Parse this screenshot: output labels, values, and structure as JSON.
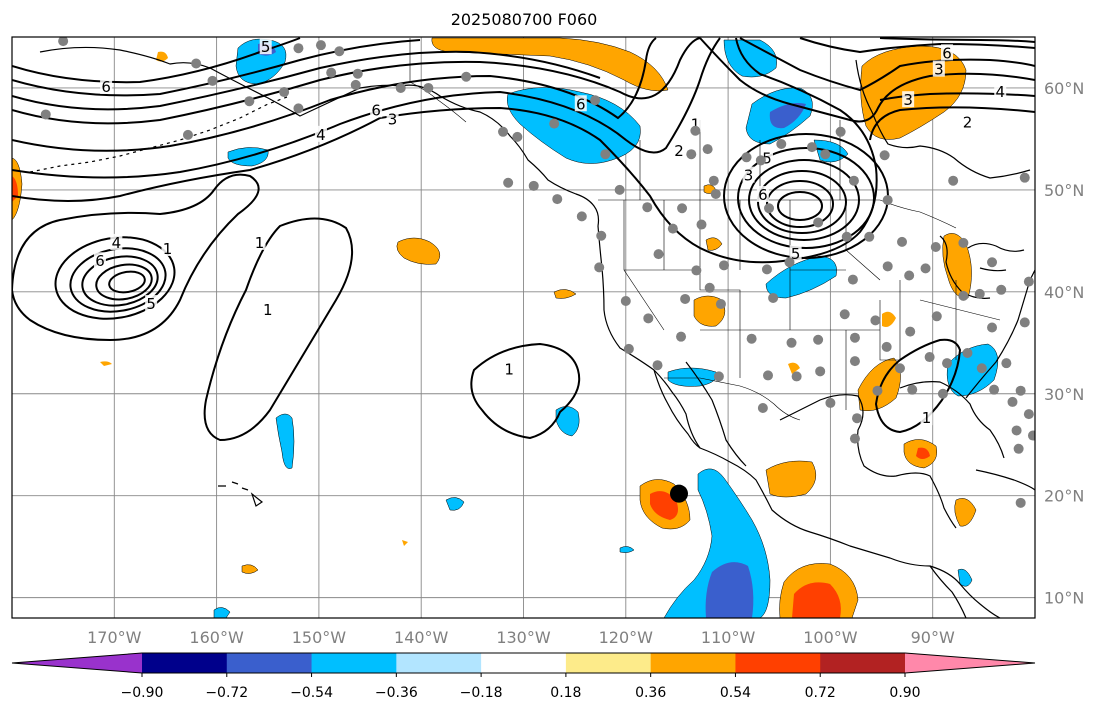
{
  "title": "2025080700 F060",
  "map": {
    "lon_range": [
      -180,
      -80
    ],
    "lat_range": [
      8,
      65
    ],
    "lon_ticks": [
      {
        "value": -170,
        "label": "170°W"
      },
      {
        "value": -160,
        "label": "160°W"
      },
      {
        "value": -150,
        "label": "150°W"
      },
      {
        "value": -140,
        "label": "140°W"
      },
      {
        "value": -130,
        "label": "130°W"
      },
      {
        "value": -120,
        "label": "120°W"
      },
      {
        "value": -110,
        "label": "110°W"
      },
      {
        "value": -100,
        "label": "100°W"
      },
      {
        "value": -90,
        "label": "90°W"
      }
    ],
    "lat_ticks": [
      {
        "value": 10,
        "label": "10°N"
      },
      {
        "value": 20,
        "label": "20°N"
      },
      {
        "value": 30,
        "label": "30°N"
      },
      {
        "value": 40,
        "label": "40°N"
      },
      {
        "value": 50,
        "label": "50°N"
      },
      {
        "value": 60,
        "label": "60°N"
      }
    ],
    "grid": true,
    "marker": {
      "lon": -114.8,
      "lat": 20.2,
      "color": "#000000"
    },
    "contour_labels": [
      {
        "text": "6",
        "lon": -170.8,
        "lat": 60.1
      },
      {
        "text": "4",
        "lon": -169.8,
        "lat": 44.8
      },
      {
        "text": "6",
        "lon": -171.4,
        "lat": 43.0
      },
      {
        "text": "5",
        "lon": -166.4,
        "lat": 38.8
      },
      {
        "text": "1",
        "lon": -164.8,
        "lat": 44.2
      },
      {
        "text": "1",
        "lon": -155.8,
        "lat": 44.8
      },
      {
        "text": "1",
        "lon": -155.0,
        "lat": 38.2
      },
      {
        "text": "4",
        "lon": -149.8,
        "lat": 55.4
      },
      {
        "text": "3",
        "lon": -142.8,
        "lat": 56.9
      },
      {
        "text": "6",
        "lon": -144.4,
        "lat": 57.8
      },
      {
        "text": "5",
        "lon": -155.2,
        "lat": 64.0
      },
      {
        "text": "6",
        "lon": -124.4,
        "lat": 58.4
      },
      {
        "text": "1",
        "lon": -113.2,
        "lat": 56.4
      },
      {
        "text": "2",
        "lon": -114.8,
        "lat": 53.8
      },
      {
        "text": "3",
        "lon": -108.0,
        "lat": 51.4
      },
      {
        "text": "6",
        "lon": -106.6,
        "lat": 49.5
      },
      {
        "text": "5",
        "lon": -106.2,
        "lat": 53.1
      },
      {
        "text": "5",
        "lon": -103.4,
        "lat": 43.7
      },
      {
        "text": "1",
        "lon": -131.4,
        "lat": 32.4
      },
      {
        "text": "6",
        "lon": -88.6,
        "lat": 63.4
      },
      {
        "text": "3",
        "lon": -89.4,
        "lat": 61.8
      },
      {
        "text": "3",
        "lon": -92.4,
        "lat": 58.8
      },
      {
        "text": "4",
        "lon": -83.4,
        "lat": 59.6
      },
      {
        "text": "2",
        "lon": -86.6,
        "lat": 56.6
      },
      {
        "text": "1",
        "lon": -90.6,
        "lat": 27.6
      }
    ],
    "station_points": [
      {
        "lon": -175.0,
        "lat": 64.6
      },
      {
        "lon": -152.0,
        "lat": 63.9
      },
      {
        "lon": -149.8,
        "lat": 64.2
      },
      {
        "lon": -148.0,
        "lat": 63.6
      },
      {
        "lon": -146.4,
        "lat": 60.3
      },
      {
        "lon": -146.2,
        "lat": 61.4
      },
      {
        "lon": -160.4,
        "lat": 60.7
      },
      {
        "lon": -153.4,
        "lat": 59.6
      },
      {
        "lon": -156.8,
        "lat": 58.7
      },
      {
        "lon": -162.0,
        "lat": 62.4
      },
      {
        "lon": -176.7,
        "lat": 57.4
      },
      {
        "lon": -162.8,
        "lat": 55.4
      },
      {
        "lon": -152.0,
        "lat": 58.0
      },
      {
        "lon": -148.8,
        "lat": 61.5
      },
      {
        "lon": -142.0,
        "lat": 60.0
      },
      {
        "lon": -139.3,
        "lat": 60.0
      },
      {
        "lon": -135.6,
        "lat": 61.1
      },
      {
        "lon": -132.0,
        "lat": 55.7
      },
      {
        "lon": -130.6,
        "lat": 55.2
      },
      {
        "lon": -127.0,
        "lat": 56.5
      },
      {
        "lon": -123.0,
        "lat": 58.8
      },
      {
        "lon": -122.0,
        "lat": 53.5
      },
      {
        "lon": -131.5,
        "lat": 50.7
      },
      {
        "lon": -129.0,
        "lat": 50.4
      },
      {
        "lon": -126.7,
        "lat": 49.1
      },
      {
        "lon": -124.3,
        "lat": 47.4
      },
      {
        "lon": -120.6,
        "lat": 50.0
      },
      {
        "lon": -117.9,
        "lat": 48.3
      },
      {
        "lon": -113.2,
        "lat": 55.8
      },
      {
        "lon": -113.6,
        "lat": 53.5
      },
      {
        "lon": -112.0,
        "lat": 54.0
      },
      {
        "lon": -108.2,
        "lat": 53.2
      },
      {
        "lon": -106.8,
        "lat": 52.9
      },
      {
        "lon": -104.8,
        "lat": 54.5
      },
      {
        "lon": -101.8,
        "lat": 54.2
      },
      {
        "lon": -100.5,
        "lat": 53.5
      },
      {
        "lon": -97.7,
        "lat": 50.9
      },
      {
        "lon": -99.0,
        "lat": 55.7
      },
      {
        "lon": -94.7,
        "lat": 53.4
      },
      {
        "lon": -88.0,
        "lat": 50.9
      },
      {
        "lon": -81.0,
        "lat": 51.2
      },
      {
        "lon": -111.4,
        "lat": 50.9
      },
      {
        "lon": -111.2,
        "lat": 49.6
      },
      {
        "lon": -115.4,
        "lat": 46.2
      },
      {
        "lon": -114.5,
        "lat": 48.2
      },
      {
        "lon": -112.6,
        "lat": 46.6
      },
      {
        "lon": -106.0,
        "lat": 48.2
      },
      {
        "lon": -101.2,
        "lat": 46.8
      },
      {
        "lon": -98.4,
        "lat": 45.4
      },
      {
        "lon": -96.2,
        "lat": 45.4
      },
      {
        "lon": -94.4,
        "lat": 49.0
      },
      {
        "lon": -93.0,
        "lat": 44.9
      },
      {
        "lon": -89.7,
        "lat": 44.4
      },
      {
        "lon": -87.0,
        "lat": 44.8
      },
      {
        "lon": -84.2,
        "lat": 42.9
      },
      {
        "lon": -90.7,
        "lat": 42.3
      },
      {
        "lon": -92.3,
        "lat": 41.6
      },
      {
        "lon": -94.4,
        "lat": 42.5
      },
      {
        "lon": -97.8,
        "lat": 41.2
      },
      {
        "lon": -104.0,
        "lat": 42.9
      },
      {
        "lon": -106.2,
        "lat": 42.2
      },
      {
        "lon": -110.4,
        "lat": 42.6
      },
      {
        "lon": -113.1,
        "lat": 42.1
      },
      {
        "lon": -116.8,
        "lat": 43.7
      },
      {
        "lon": -122.4,
        "lat": 45.5
      },
      {
        "lon": -122.6,
        "lat": 42.4
      },
      {
        "lon": -120.0,
        "lat": 39.1
      },
      {
        "lon": -117.8,
        "lat": 37.4
      },
      {
        "lon": -119.7,
        "lat": 34.4
      },
      {
        "lon": -116.9,
        "lat": 32.8
      },
      {
        "lon": -114.6,
        "lat": 35.6
      },
      {
        "lon": -114.2,
        "lat": 39.3
      },
      {
        "lon": -111.8,
        "lat": 40.4
      },
      {
        "lon": -110.7,
        "lat": 38.8
      },
      {
        "lon": -105.6,
        "lat": 39.4
      },
      {
        "lon": -107.7,
        "lat": 35.4
      },
      {
        "lon": -103.8,
        "lat": 35.0
      },
      {
        "lon": -101.2,
        "lat": 35.3
      },
      {
        "lon": -97.6,
        "lat": 35.5
      },
      {
        "lon": -98.6,
        "lat": 37.8
      },
      {
        "lon": -95.6,
        "lat": 37.2
      },
      {
        "lon": -97.6,
        "lat": 33.2
      },
      {
        "lon": -101.0,
        "lat": 32.2
      },
      {
        "lon": -103.3,
        "lat": 31.7
      },
      {
        "lon": -106.1,
        "lat": 31.8
      },
      {
        "lon": -110.9,
        "lat": 31.7
      },
      {
        "lon": -106.6,
        "lat": 28.6
      },
      {
        "lon": -100.0,
        "lat": 29.1
      },
      {
        "lon": -97.4,
        "lat": 27.6
      },
      {
        "lon": -97.6,
        "lat": 25.6
      },
      {
        "lon": -95.4,
        "lat": 30.3
      },
      {
        "lon": -93.2,
        "lat": 32.5
      },
      {
        "lon": -94.5,
        "lat": 34.6
      },
      {
        "lon": -92.2,
        "lat": 36.1
      },
      {
        "lon": -89.6,
        "lat": 37.6
      },
      {
        "lon": -87.0,
        "lat": 39.6
      },
      {
        "lon": -85.4,
        "lat": 39.8
      },
      {
        "lon": -83.3,
        "lat": 40.2
      },
      {
        "lon": -80.6,
        "lat": 41.0
      },
      {
        "lon": -81.0,
        "lat": 37.0
      },
      {
        "lon": -84.2,
        "lat": 36.5
      },
      {
        "lon": -86.6,
        "lat": 34.0
      },
      {
        "lon": -88.6,
        "lat": 33.0
      },
      {
        "lon": -90.3,
        "lat": 33.6
      },
      {
        "lon": -92.0,
        "lat": 30.4
      },
      {
        "lon": -89.0,
        "lat": 30.0
      },
      {
        "lon": -85.2,
        "lat": 32.5
      },
      {
        "lon": -82.8,
        "lat": 33.0
      },
      {
        "lon": -81.4,
        "lat": 30.3
      },
      {
        "lon": -80.6,
        "lat": 28.0
      },
      {
        "lon": -80.2,
        "lat": 25.9
      },
      {
        "lon": -81.8,
        "lat": 26.4
      },
      {
        "lon": -82.2,
        "lat": 29.2
      },
      {
        "lon": -84.0,
        "lat": 30.4
      },
      {
        "lon": -81.6,
        "lat": 24.6
      },
      {
        "lon": -81.4,
        "lat": 19.3
      }
    ],
    "colorbar": {
      "colors": [
        "#9932cc",
        "#00008b",
        "#3a5fcd",
        "#00bfff",
        "#b2e5ff",
        "#ffffff",
        "#fdeb8a",
        "#ffa500",
        "#ff4000",
        "#b22222",
        "#ff88aa"
      ],
      "labels": [
        "−0.90",
        "−0.72",
        "−0.54",
        "−0.36",
        "−0.18",
        "0.18",
        "0.36",
        "0.54",
        "0.72",
        "0.90"
      ]
    }
  }
}
